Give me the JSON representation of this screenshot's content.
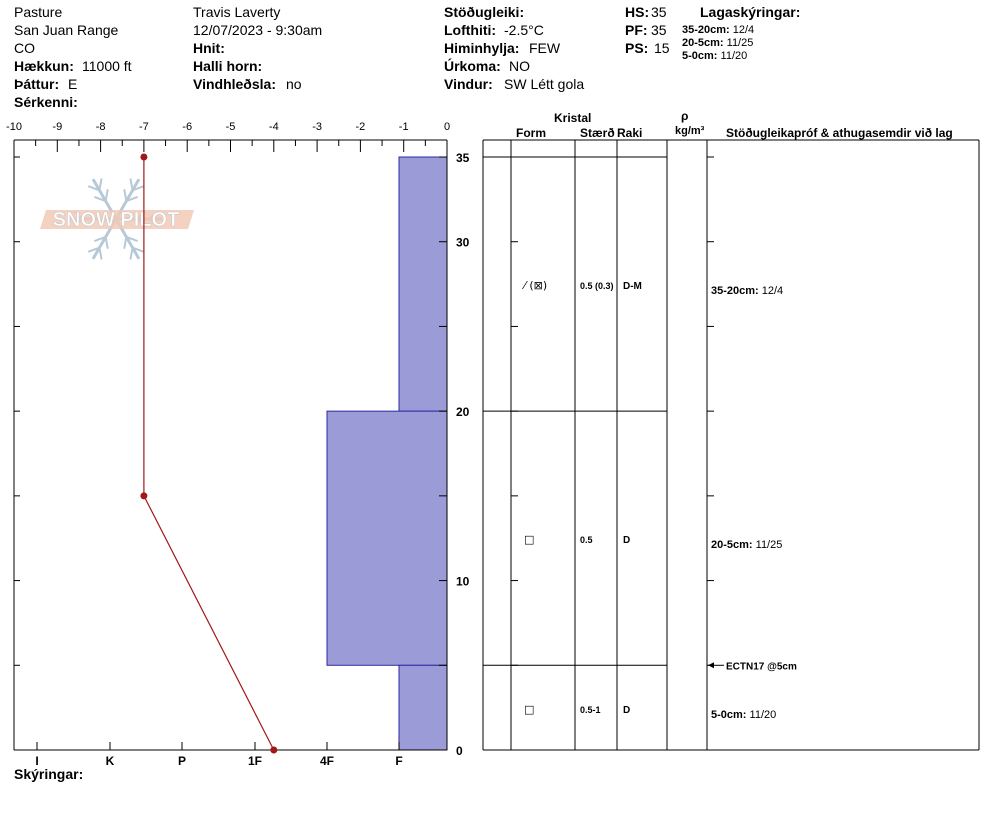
{
  "header": {
    "location": "Pasture",
    "range": "San Juan Range",
    "state": "CO",
    "elevation_label": "Hækkun:",
    "elevation_value": "11000 ft",
    "aspect_label": "Þáttur:",
    "aspect_value": "E",
    "features_label": "Sérkenni:",
    "observer": "Travis Laverty",
    "datetime": "12/07/2023 - 9:30am",
    "coords_label": "Hnit:",
    "slope_label": "Halli horn:",
    "wind_loading_label": "Vindhleðsla:",
    "wind_loading_value": "no",
    "stability_label": "Stöðugleiki:",
    "air_temp_label": "Lofthiti:",
    "air_temp_value": "-2.5°C",
    "sky_label": "Himinhylja:",
    "sky_value": "FEW",
    "precip_label": "Úrkoma:",
    "precip_value": "NO",
    "wind_label": "Vindur:",
    "wind_value": "SW Létt gola",
    "hs_label": "HS:",
    "hs_value": "35",
    "pf_label": "PF:",
    "pf_value": "35",
    "ps_label": "PS:",
    "ps_value": "15",
    "layer_notes_label": "Lagaskýringar:",
    "layer_notes": [
      {
        "range": "35-20cm:",
        "value": "12/4"
      },
      {
        "range": "20-5cm:",
        "value": "11/25"
      },
      {
        "range": "5-0cm:",
        "value": "11/20"
      }
    ]
  },
  "legend_label": "Skýringar:",
  "logo_text": "SNOW PILOT",
  "chart_data": {
    "type": "bar",
    "temperature_axis": {
      "ticks": [
        "-10",
        "-9",
        "-8",
        "-7",
        "-6",
        "-5",
        "-4",
        "-3",
        "-2",
        "-1",
        "0"
      ],
      "range": [
        -10,
        0
      ]
    },
    "depth_axis": {
      "ticks": [
        "0",
        "10",
        "20",
        "30",
        "35"
      ],
      "range": [
        0,
        35
      ]
    },
    "hardness_axis": {
      "ticks": [
        "I",
        "K",
        "P",
        "1F",
        "4F",
        "F"
      ]
    },
    "temperature_profile": [
      {
        "depth": 35,
        "temp": -7.0
      },
      {
        "depth": 15,
        "temp": -7.0
      },
      {
        "depth": 0,
        "temp": -4.0
      }
    ],
    "hardness_layers": [
      {
        "top": 35,
        "bottom": 20,
        "hardness": "F"
      },
      {
        "top": 20,
        "bottom": 5,
        "hardness": "4F"
      },
      {
        "top": 5,
        "bottom": 0,
        "hardness": "F"
      }
    ],
    "colors": {
      "hardness_fill": "#9b9bd7",
      "temperature_line": "#a01818"
    }
  },
  "table": {
    "crystal_label": "Kristal",
    "form_label": "Form",
    "size_label": "Stærð",
    "moisture_label": "Raki",
    "density_symbol": "ρ",
    "density_unit": "kg/m³",
    "comments_label": "Stöðugleikapróf & athugasemdir við lag",
    "layers": [
      {
        "top": 35,
        "bottom": 20,
        "form": "⁄ (⊠)",
        "size": "0.5 (0.3)",
        "moisture": "D-M",
        "comment_range": "35-20cm:",
        "comment_value": "12/4"
      },
      {
        "top": 20,
        "bottom": 5,
        "form": "□",
        "size": "0.5",
        "moisture": "D",
        "comment_range": "20-5cm:",
        "comment_value": "11/25"
      },
      {
        "top": 5,
        "bottom": 0,
        "form": "□",
        "size": "0.5-1",
        "moisture": "D",
        "comment_range": "5-0cm:",
        "comment_value": "11/20"
      }
    ],
    "test_result": "ECTN17 @5cm"
  }
}
